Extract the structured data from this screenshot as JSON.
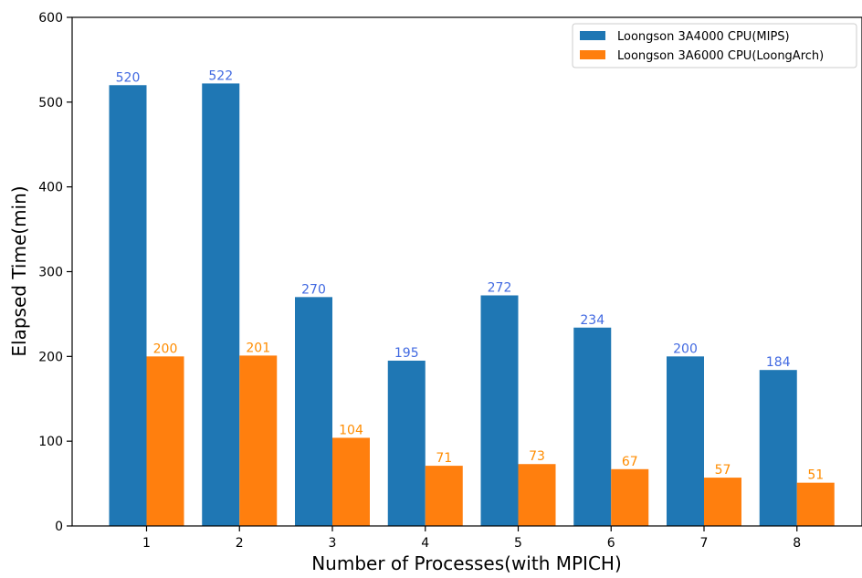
{
  "chart_data": {
    "type": "bar",
    "title": "",
    "xlabel": "Number of Processes(with MPICH)",
    "ylabel": "Elapsed Time(min)",
    "categories": [
      "1",
      "2",
      "3",
      "4",
      "5",
      "6",
      "7",
      "8"
    ],
    "ylim": [
      0,
      600
    ],
    "yticks": [
      "0",
      "100",
      "200",
      "300",
      "400",
      "500",
      "600"
    ],
    "grid": false,
    "legend_position": "top-right",
    "series": [
      {
        "name": "Loongson 3A4000 CPU(MIPS)",
        "color": "#1f77b4",
        "label_color": "#4169e1",
        "values": [
          520,
          522,
          270,
          195,
          272,
          234,
          200,
          184
        ]
      },
      {
        "name": "Loongson 3A6000 CPU(LoongArch)",
        "color": "#ff7f0e",
        "label_color": "#ff8c00",
        "values": [
          200,
          201,
          104,
          71,
          73,
          67,
          57,
          51
        ]
      }
    ]
  }
}
